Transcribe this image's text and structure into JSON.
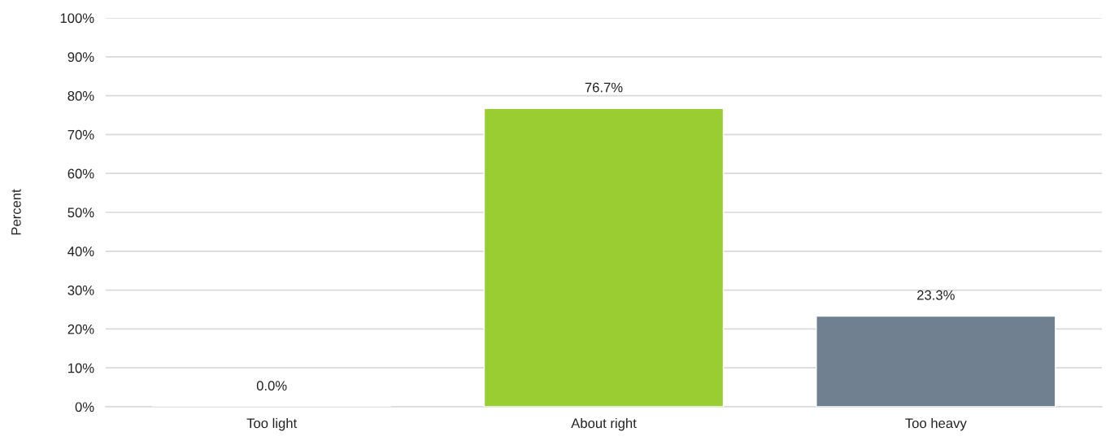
{
  "chart_data": {
    "type": "bar",
    "ylabel": "Percent",
    "categories": [
      "Too light",
      "About right",
      "Too heavy"
    ],
    "values": [
      0.0,
      76.7,
      23.3
    ],
    "colors": [
      null,
      "#9acd32",
      "#708090"
    ],
    "value_labels": [
      "0.0%",
      "76.7%",
      "23.3%"
    ],
    "ylim": [
      0,
      100
    ],
    "yticks": [
      {
        "value": 0,
        "label": "0%"
      },
      {
        "value": 10,
        "label": "10%"
      },
      {
        "value": 20,
        "label": "20%"
      },
      {
        "value": 30,
        "label": "30%"
      },
      {
        "value": 40,
        "label": "40%"
      },
      {
        "value": 50,
        "label": "50%"
      },
      {
        "value": 60,
        "label": "60%"
      },
      {
        "value": 70,
        "label": "70%"
      },
      {
        "value": 80,
        "label": "80%"
      },
      {
        "value": 90,
        "label": "90%"
      },
      {
        "value": 100,
        "label": "100%"
      }
    ],
    "grid": "y"
  }
}
